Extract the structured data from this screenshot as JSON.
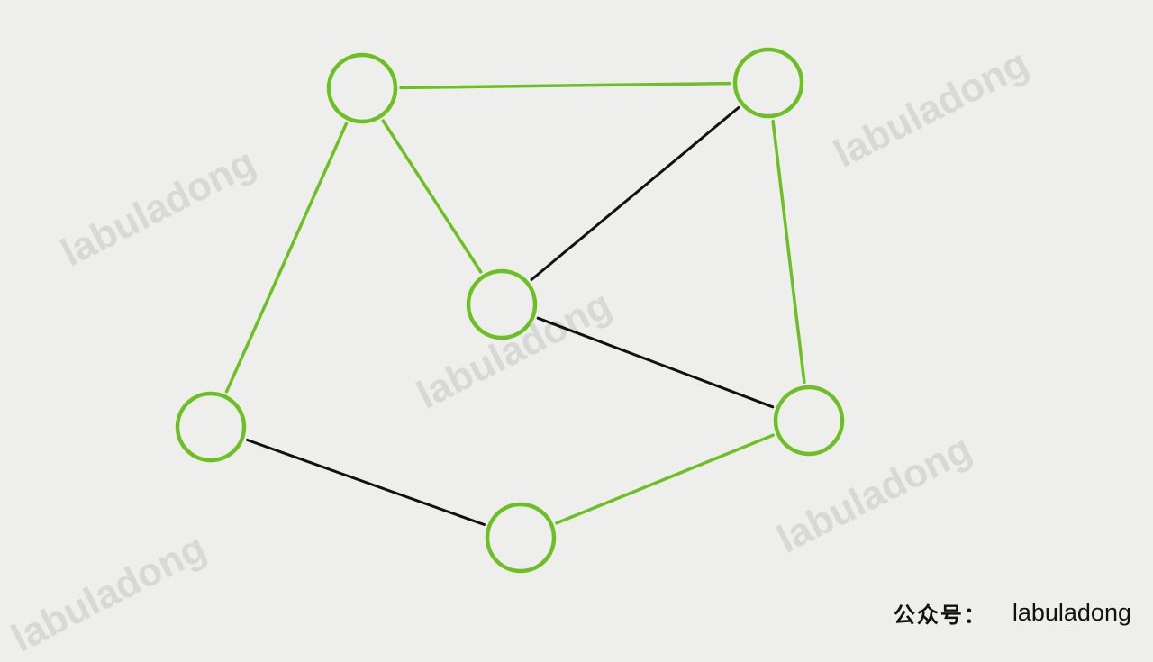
{
  "watermark_text": "labuladong",
  "footer": {
    "prefix": "公众号：",
    "account": "labuladong"
  },
  "colors": {
    "background": "#eeeeec",
    "node_stroke": "#6cc024",
    "highlight_edge": "#6cc024",
    "normal_edge": "#111111"
  },
  "graph": {
    "nodes": [
      {
        "id": "top-left"
      },
      {
        "id": "top-right"
      },
      {
        "id": "center"
      },
      {
        "id": "left"
      },
      {
        "id": "right"
      },
      {
        "id": "bottom"
      }
    ],
    "edges": [
      {
        "from": "top-left",
        "to": "top-right",
        "highlighted": true
      },
      {
        "from": "top-left",
        "to": "center",
        "highlighted": true
      },
      {
        "from": "top-left",
        "to": "left",
        "highlighted": true
      },
      {
        "from": "top-right",
        "to": "center",
        "highlighted": false
      },
      {
        "from": "top-right",
        "to": "right",
        "highlighted": true
      },
      {
        "from": "center",
        "to": "right",
        "highlighted": false
      },
      {
        "from": "left",
        "to": "bottom",
        "highlighted": false
      },
      {
        "from": "bottom",
        "to": "right",
        "highlighted": true
      }
    ]
  }
}
